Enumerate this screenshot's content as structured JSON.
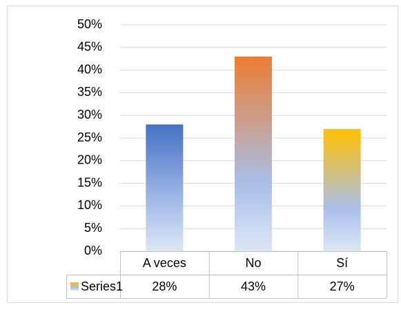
{
  "chart_data": {
    "type": "bar",
    "categories": [
      "A veces",
      "No",
      "Sí"
    ],
    "series": [
      {
        "name": "Series1",
        "values": [
          28,
          43,
          27
        ],
        "value_labels": [
          "28%",
          "43%",
          "27%"
        ],
        "colors": [
          "#4472c4",
          "#ed7d31",
          "#ffc000"
        ]
      }
    ],
    "ylim": [
      0,
      50
    ],
    "yticks": [
      {
        "value": 0,
        "label": "0%"
      },
      {
        "value": 5,
        "label": "5%"
      },
      {
        "value": 10,
        "label": "10%"
      },
      {
        "value": 15,
        "label": "15%"
      },
      {
        "value": 20,
        "label": "20%"
      },
      {
        "value": 25,
        "label": "25%"
      },
      {
        "value": 30,
        "label": "30%"
      },
      {
        "value": 35,
        "label": "35%"
      },
      {
        "value": 40,
        "label": "40%"
      },
      {
        "value": 45,
        "label": "45%"
      },
      {
        "value": 50,
        "label": "50%"
      }
    ],
    "grid": true,
    "data_table": true
  }
}
